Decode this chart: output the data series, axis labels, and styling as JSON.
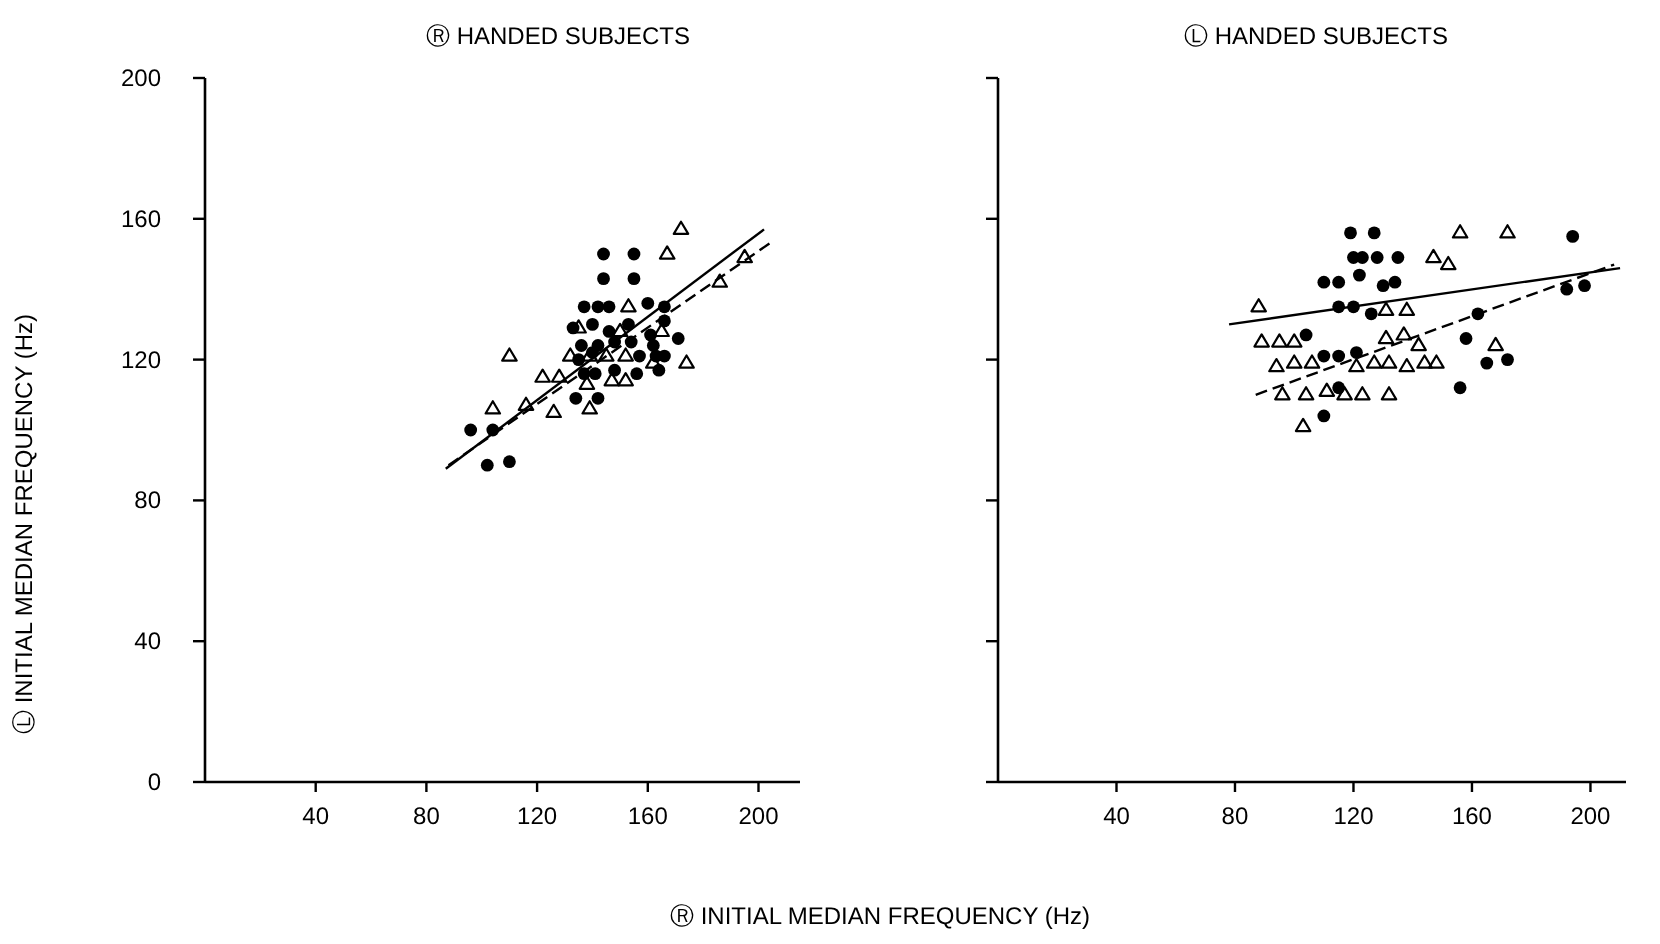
{
  "chart_data": [
    {
      "type": "scatter",
      "title": "Ⓡ HANDED SUBJECTS",
      "xlabel": "Ⓡ INITIAL MEDIAN FREQUENCY (Hz)",
      "ylabel": "Ⓛ INITIAL MEDIAN FREQUENCY (Hz)",
      "xlim": [
        0,
        215
      ],
      "ylim": [
        0,
        200
      ],
      "xticks": [
        40,
        80,
        120,
        160,
        200
      ],
      "yticks": [
        0,
        40,
        80,
        120,
        160,
        200
      ],
      "series": [
        {
          "type": "scatter",
          "marker": "circle",
          "color": "#000000",
          "x": [
            144,
            155,
            144,
            155,
            137,
            142,
            146,
            160,
            166,
            133,
            140,
            146,
            153,
            161,
            171,
            136,
            142,
            148,
            154,
            162,
            135,
            140,
            157,
            163,
            166,
            137,
            141,
            148,
            156,
            164,
            134,
            142,
            96,
            104,
            102,
            110,
            166
          ],
          "values": [
            150,
            150,
            143,
            143,
            135,
            135,
            135,
            136,
            135,
            129,
            130,
            128,
            130,
            127,
            126,
            124,
            124,
            125,
            125,
            124,
            120,
            122,
            121,
            121,
            121,
            116,
            116,
            117,
            116,
            117,
            109,
            109,
            100,
            100,
            90,
            91,
            131
          ]
        },
        {
          "type": "scatter",
          "marker": "triangle",
          "color": "#000000",
          "x": [
            172,
            167,
            195,
            186,
            153,
            135,
            150,
            165,
            110,
            132,
            139,
            145,
            152,
            174,
            122,
            128,
            138,
            147,
            152,
            104,
            116,
            126,
            139,
            162
          ],
          "values": [
            157,
            150,
            149,
            142,
            135,
            129,
            128,
            128,
            121,
            121,
            121,
            121,
            121,
            119,
            115,
            115,
            113,
            114,
            114,
            106,
            107,
            105,
            106,
            119
          ]
        },
        {
          "type": "line",
          "line_style": "solid",
          "color": "#000000",
          "x": [
            87,
            202
          ],
          "values": [
            89,
            157
          ]
        },
        {
          "type": "line",
          "line_style": "dashed",
          "color": "#000000",
          "x": [
            88,
            204
          ],
          "values": [
            90,
            153
          ]
        }
      ]
    },
    {
      "type": "scatter",
      "title": "Ⓛ HANDED SUBJECTS",
      "tick_labels": "x",
      "xlim": [
        0,
        212
      ],
      "ylim": [
        0,
        200
      ],
      "xticks": [
        40,
        80,
        120,
        160,
        200
      ],
      "yticks": [
        0,
        40,
        80,
        120,
        160,
        200
      ],
      "series": [
        {
          "type": "scatter",
          "marker": "circle",
          "color": "#000000",
          "x": [
            119,
            127,
            194,
            120,
            123,
            128,
            135,
            110,
            115,
            122,
            130,
            134,
            115,
            120,
            126,
            104,
            162,
            192,
            198,
            110,
            115,
            121,
            158,
            165,
            172,
            115,
            156,
            110
          ],
          "values": [
            156,
            156,
            155,
            149,
            149,
            149,
            149,
            142,
            142,
            144,
            141,
            142,
            135,
            135,
            133,
            127,
            133,
            140,
            141,
            121,
            121,
            122,
            126,
            119,
            120,
            112,
            112,
            104
          ]
        },
        {
          "type": "scatter",
          "marker": "triangle",
          "color": "#000000",
          "x": [
            156,
            172,
            147,
            152,
            88,
            131,
            138,
            89,
            95,
            100,
            131,
            137,
            142,
            168,
            94,
            100,
            106,
            121,
            127,
            132,
            138,
            144,
            148,
            96,
            104,
            111,
            117,
            123,
            132,
            103
          ],
          "values": [
            156,
            156,
            149,
            147,
            135,
            134,
            134,
            125,
            125,
            125,
            126,
            127,
            124,
            124,
            118,
            119,
            119,
            118,
            119,
            119,
            118,
            119,
            119,
            110,
            110,
            111,
            110,
            110,
            110,
            101
          ]
        },
        {
          "type": "line",
          "line_style": "solid",
          "color": "#000000",
          "x": [
            78,
            210
          ],
          "values": [
            130,
            146
          ]
        },
        {
          "type": "line",
          "line_style": "dashed",
          "color": "#000000",
          "x": [
            87,
            208
          ],
          "values": [
            110,
            147
          ]
        }
      ]
    }
  ]
}
